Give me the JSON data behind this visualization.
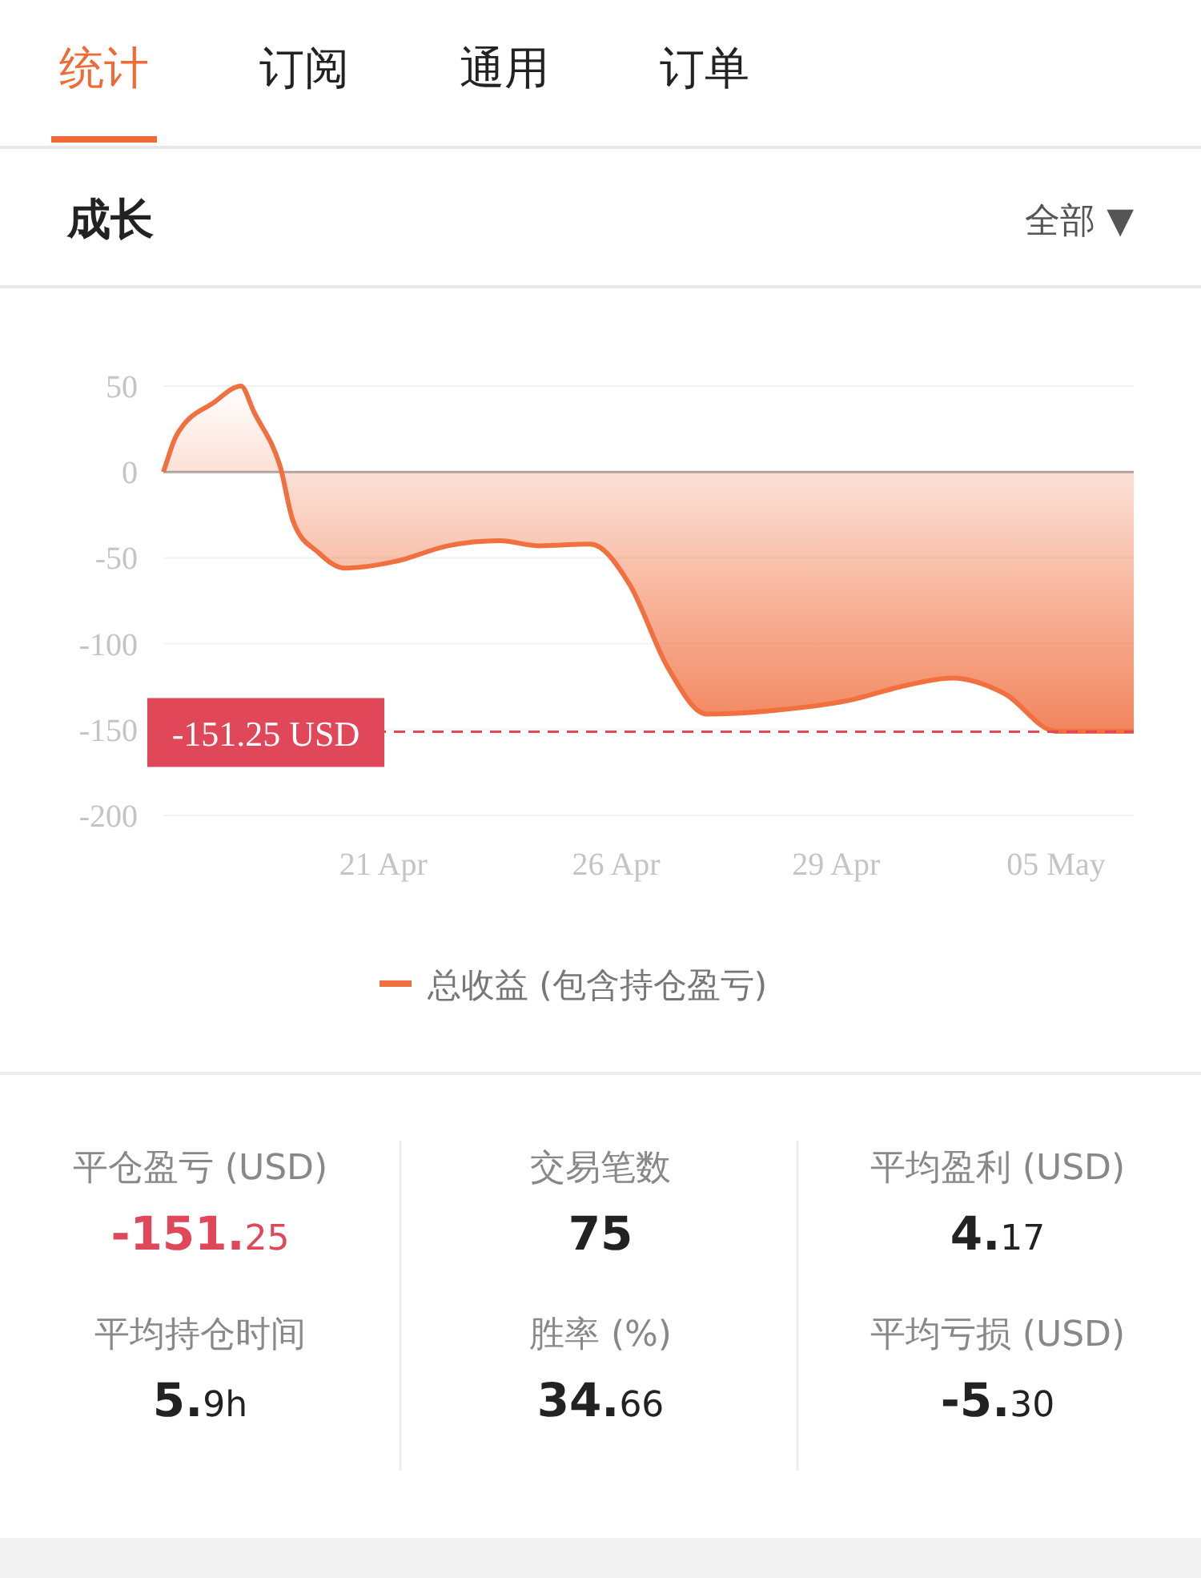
{
  "chart_data": [
    {
      "type": "area",
      "title": "成长",
      "annotations": [
        "统计",
        "订阅",
        "通用",
        "订单",
        "全部 ▼"
      ],
      "categories": [
        null,
        null,
        null,
        null,
        null,
        null,
        null,
        null,
        null,
        null,
        null,
        null,
        null,
        null,
        null,
        null,
        null,
        "21 Apr",
        null,
        null,
        null,
        null,
        null,
        null,
        null,
        null,
        null,
        null,
        null,
        null,
        null,
        null,
        null,
        null,
        null,
        "26 Apr",
        null,
        null,
        null,
        null,
        null,
        null,
        null,
        null,
        null,
        null,
        null,
        null,
        null,
        null,
        null,
        null,
        "29 Apr",
        null,
        null,
        null,
        null,
        null,
        null,
        null,
        null,
        null,
        null,
        null,
        null,
        null,
        null,
        null,
        null,
        "05 May",
        null,
        null,
        null,
        null,
        null,
        null
      ],
      "ylim": [
        -200,
        50
      ],
      "yticks": [
        50,
        0,
        -50,
        -100,
        -150,
        -200
      ],
      "grid": "y",
      "legend": "bottom",
      "series": [
        {
          "name": "总收益 (包含持仓盈亏)",
          "color": "#f07040",
          "values": [
            0,
            21,
            null,
            null,
            41,
            null,
            50,
            35,
            null,
            4,
            -28,
            null,
            -47,
            null,
            -56,
            null,
            null,
            null,
            -52,
            null,
            null,
            null,
            -43,
            null,
            null,
            null,
            -40,
            null,
            null,
            -43,
            null,
            null,
            null,
            -42,
            null,
            null,
            -65,
            null,
            null,
            -114,
            null,
            null,
            -141,
            null,
            null,
            null,
            null,
            -139,
            null,
            null,
            null,
            null,
            null,
            -133,
            null,
            null,
            null,
            -125,
            null,
            null,
            null,
            -120,
            null,
            null,
            null,
            -129,
            null,
            null,
            null,
            -151,
            null,
            null,
            null,
            null,
            null,
            -151
          ]
        }
      ],
      "ref_lines": [
        {
          "axis": "y",
          "value": -151.25,
          "label": "-151.25 USD",
          "color": "#e0485a",
          "line_style": "dashed"
        }
      ]
    },
    {
      "type": "other",
      "annotations": [
        "平仓盈亏 (USD)",
        "-151.25",
        "交易笔数",
        "75",
        "平均盈利 (USD)",
        "4.17",
        "平均持仓时间",
        "5.9h",
        "胜率 (%)",
        "34.66",
        "平均亏损 (USD)",
        "-5.30"
      ],
      "colors": [
        "#e0485a",
        "#222222",
        "#222222",
        "#222222",
        "#222222",
        "#222222"
      ]
    }
  ]
}
